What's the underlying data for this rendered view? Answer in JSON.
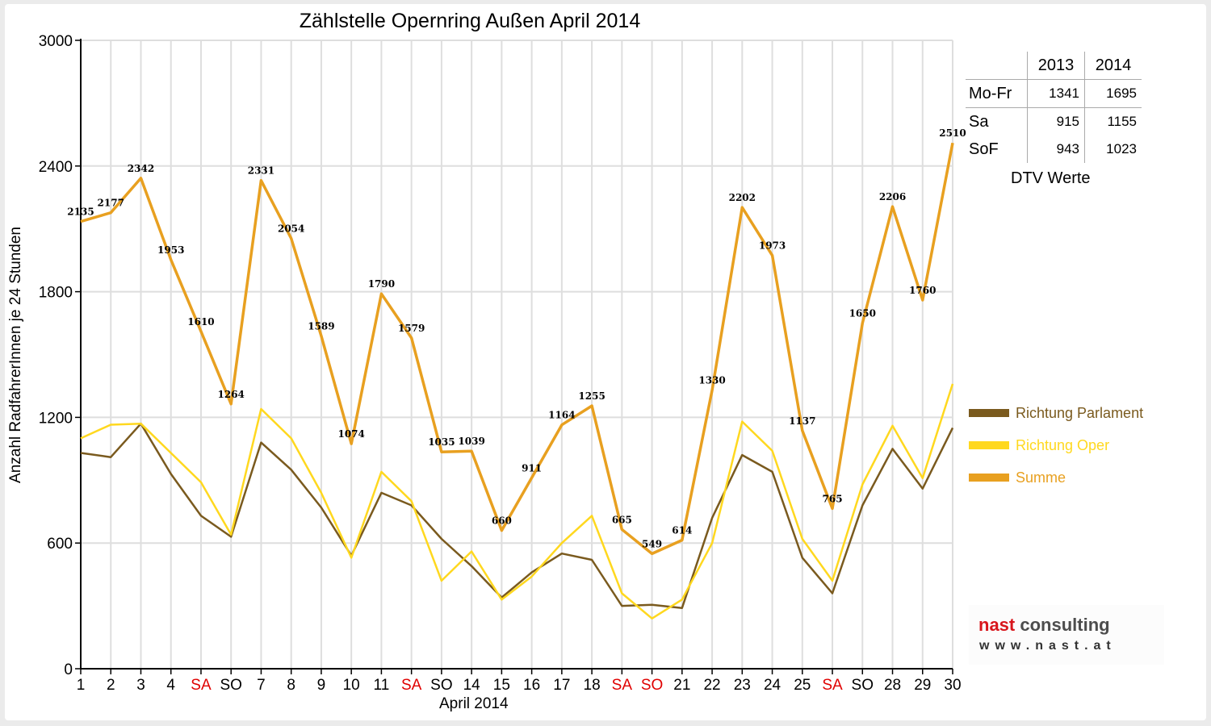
{
  "chart_data": {
    "type": "line",
    "title": "Zählstelle Opernring Außen April 2014",
    "xlabel": "April 2014",
    "ylabel": "Anzahl RadfahrerInnen je 24 Stunden",
    "ylim": [
      0,
      3000
    ],
    "yticks": [
      "0",
      "600",
      "1200",
      "1800",
      "2400",
      "3000"
    ],
    "grid": true,
    "legend_position": "right",
    "x": [
      1,
      2,
      3,
      4,
      5,
      6,
      7,
      8,
      9,
      10,
      11,
      12,
      13,
      14,
      15,
      16,
      17,
      18,
      19,
      20,
      21,
      22,
      23,
      24,
      25,
      26,
      27,
      28,
      29,
      30
    ],
    "categories": [
      "1",
      "2",
      "3",
      "4",
      "SA",
      "SO",
      "7",
      "8",
      "9",
      "10",
      "11",
      "SA",
      "SO",
      "14",
      "15",
      "16",
      "17",
      "18",
      "SA",
      "SO",
      "21",
      "22",
      "23",
      "24",
      "25",
      "SA",
      "SO",
      "28",
      "29",
      "30"
    ],
    "red_categories": [
      5,
      12,
      19,
      20,
      26
    ],
    "series": [
      {
        "name": "Richtung Parlament",
        "color": "#7a5a1e",
        "values": [
          1030,
          1010,
          1170,
          930,
          730,
          630,
          1080,
          950,
          770,
          540,
          840,
          780,
          620,
          490,
          340,
          460,
          550,
          520,
          300,
          305,
          290,
          720,
          1020,
          940,
          530,
          360,
          780,
          1050,
          860,
          1150
        ]
      },
      {
        "name": "Richtung Oper",
        "color": "#ffd81f",
        "values": [
          1100,
          1165,
          1170,
          1030,
          890,
          640,
          1240,
          1100,
          840,
          530,
          940,
          800,
          420,
          560,
          330,
          440,
          600,
          730,
          360,
          240,
          330,
          600,
          1180,
          1040,
          620,
          420,
          880,
          1160,
          910,
          1360
        ]
      },
      {
        "name": "Summe",
        "color": "#e8a020",
        "values": [
          2135,
          2177,
          2342,
          1953,
          1610,
          1264,
          2331,
          2054,
          1589,
          1074,
          1790,
          1579,
          1035,
          1039,
          660,
          911,
          1164,
          1255,
          665,
          549,
          614,
          1330,
          2202,
          1973,
          1137,
          765,
          1650,
          2206,
          1760,
          2510
        ]
      }
    ],
    "data_labels": [
      "2135",
      "2177",
      "2342",
      "1953",
      "1610",
      "1264",
      "2331",
      "2054",
      "1589",
      "1074",
      "1790",
      "1579",
      "1035",
      "1039",
      "660",
      "911",
      "1164",
      "1255",
      "665",
      "549",
      "614",
      "1330",
      "2202",
      "1973",
      "1137",
      "765",
      "1650",
      "2206",
      "1760",
      "2510"
    ]
  },
  "dtv_table": {
    "headers": [
      "2013",
      "2014"
    ],
    "rows": [
      {
        "label": "Mo-Fr",
        "v2013": "1341",
        "v2014": "1695"
      },
      {
        "label": "Sa",
        "v2013": "915",
        "v2014": "1155"
      },
      {
        "label": "SoF",
        "v2013": "943",
        "v2014": "1023"
      }
    ],
    "caption": "DTV Werte"
  },
  "logo": {
    "brand": "nast",
    "rest": "consulting",
    "url": "www.nast.at"
  }
}
